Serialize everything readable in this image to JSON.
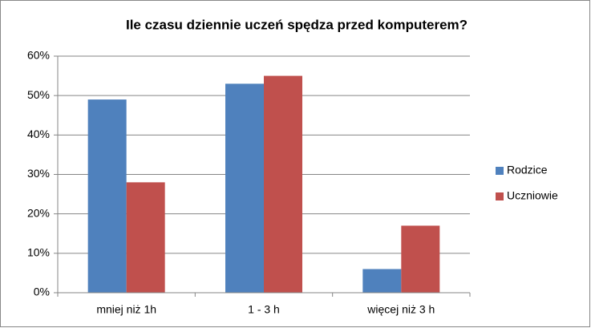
{
  "chart_data": {
    "type": "bar",
    "title": "Ile czasu dziennie uczeń spędza przed komputerem?",
    "categories": [
      "mniej niż 1h",
      "1 - 3 h",
      "więcej niż 3 h"
    ],
    "series": [
      {
        "name": "Rodzice",
        "color": "#4f81bd",
        "values": [
          49,
          53,
          6
        ]
      },
      {
        "name": "Uczniowie",
        "color": "#c0504d",
        "values": [
          28,
          55,
          17
        ]
      }
    ],
    "ylim": [
      0,
      60
    ],
    "yticks": [
      {
        "value": 0,
        "label": "0%"
      },
      {
        "value": 10,
        "label": "10%"
      },
      {
        "value": 20,
        "label": "20%"
      },
      {
        "value": 30,
        "label": "30%"
      },
      {
        "value": 40,
        "label": "40%"
      },
      {
        "value": 50,
        "label": "50%"
      },
      {
        "value": 60,
        "label": "60%"
      }
    ],
    "grid": true,
    "legend": "right"
  }
}
